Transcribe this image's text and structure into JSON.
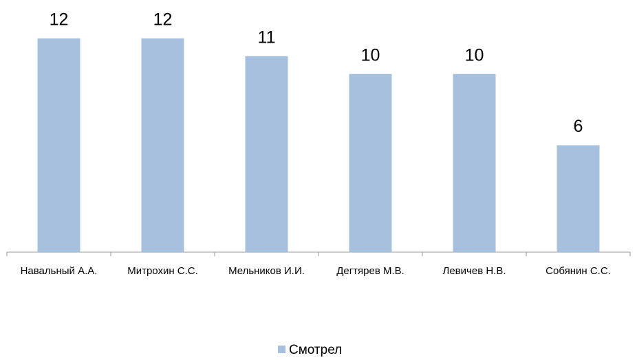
{
  "chart_data": {
    "type": "bar",
    "categories": [
      "Навальный А.А.",
      "Митрохин С.С.",
      "Мельников И.И.",
      "Дегтярев М.В.",
      "Левичев Н.В.",
      "Собянин С.С."
    ],
    "series": [
      {
        "name": "Смотрел",
        "color": "#a7c0de",
        "values": [
          12,
          12,
          11,
          10,
          10,
          6
        ]
      }
    ],
    "ylim": [
      0,
      14
    ],
    "legend": "bottom"
  }
}
